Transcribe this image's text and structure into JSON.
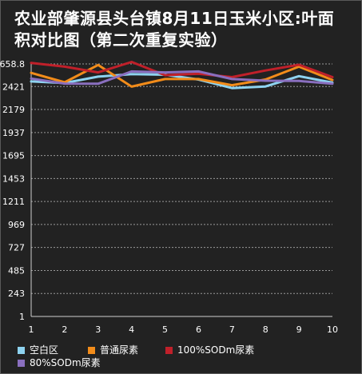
{
  "title_line1": "农业部肇源县头台镇8月11日玉米小区:叶面",
  "title_line2": "积对比图（第二次重复实验）",
  "chart_data": {
    "type": "line",
    "title": "农业部肇源县头台镇8月11日玉米小区:叶面积对比图（第二次重复实验）",
    "x": [
      1,
      2,
      3,
      4,
      5,
      6,
      7,
      8,
      9,
      10
    ],
    "y_ticks": [
      1,
      243,
      485,
      727,
      969,
      1211,
      1453,
      1695,
      1937,
      2179,
      2421,
      2658.8
    ],
    "y_tick_labels": [
      "1",
      "243",
      "485",
      "727",
      "969",
      "1211",
      "1453",
      "1695",
      "1937",
      "2179",
      "2421",
      "2658.8"
    ],
    "ylim": [
      1,
      2658.8
    ],
    "grid": true,
    "legend_position": "bottom",
    "colors": {
      "background": "#222222",
      "grid": "#9a9a9a",
      "axis": "#cfcfcf"
    },
    "series": [
      {
        "name": "空白区",
        "color": "#8ed3f0",
        "values": [
          2475,
          2458,
          2525,
          2552,
          2545,
          2495,
          2405,
          2422,
          2530,
          2462
        ]
      },
      {
        "name": "普通尿素",
        "color": "#f28c1a",
        "values": [
          2565,
          2465,
          2648,
          2420,
          2500,
          2500,
          2435,
          2495,
          2630,
          2490
        ]
      },
      {
        "name": "100%SODm尿素",
        "color": "#c0202a",
        "values": [
          2670,
          2630,
          2570,
          2680,
          2540,
          2555,
          2520,
          2590,
          2650,
          2520
        ]
      },
      {
        "name": "80%SODm尿素",
        "color": "#8a6fbf",
        "values": [
          2505,
          2452,
          2450,
          2580,
          2570,
          2580,
          2500,
          2482,
          2480,
          2450
        ]
      }
    ]
  }
}
